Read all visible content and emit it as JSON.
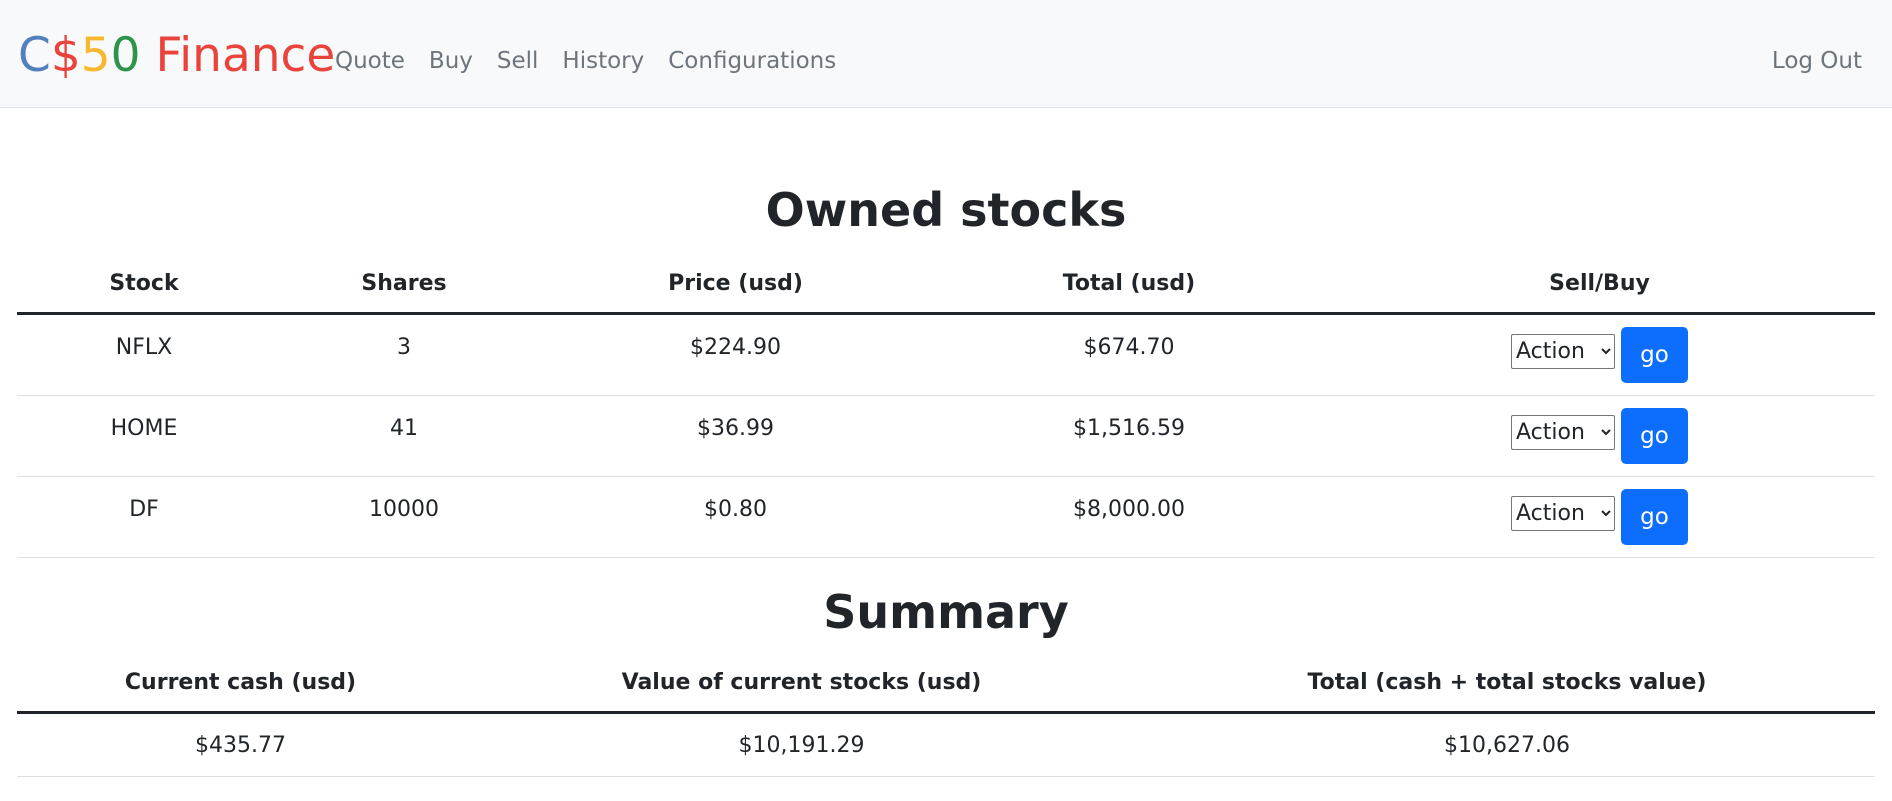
{
  "nav": {
    "brand": {
      "part1": "C",
      "part2": "$",
      "part3": "5",
      "part4": "0",
      "part5": " Finance"
    },
    "links": [
      "Quote",
      "Buy",
      "Sell",
      "History",
      "Configurations"
    ],
    "logout": "Log Out"
  },
  "owned": {
    "title": "Owned stocks",
    "headers": [
      "Stock",
      "Shares",
      "Price (usd)",
      "Total (usd)",
      "Sell/Buy"
    ],
    "rows": [
      {
        "stock": "NFLX",
        "shares": "3",
        "price": "$224.90",
        "total": "$674.70",
        "action": "Action",
        "go": "go"
      },
      {
        "stock": "HOME",
        "shares": "41",
        "price": "$36.99",
        "total": "$1,516.59",
        "action": "Action",
        "go": "go"
      },
      {
        "stock": "DF",
        "shares": "10000",
        "price": "$0.80",
        "total": "$8,000.00",
        "action": "Action",
        "go": "go"
      }
    ]
  },
  "summary": {
    "title": "Summary",
    "headers": [
      "Current cash (usd)",
      "Value of current stocks (usd)",
      "Total (cash + total stocks value)"
    ],
    "row": {
      "cash": "$435.77",
      "stocks_value": "$10,191.29",
      "total": "$10,627.06"
    }
  }
}
